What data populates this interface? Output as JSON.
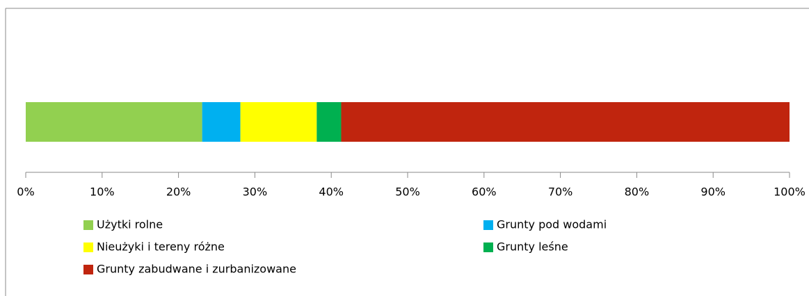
{
  "chart_data": {
    "type": "stacked-bar-horizontal",
    "series": [
      {
        "name": "Użytki rolne",
        "color": "#92d050",
        "values": [
          23.1
        ]
      },
      {
        "name": "Grunty pod wodami",
        "color": "#00b0f0",
        "values": [
          5.0
        ]
      },
      {
        "name": "Nieużyki i tereny różne",
        "color": "#ffff00",
        "values": [
          10.0
        ]
      },
      {
        "name": "Grunty leśne",
        "color": "#00b050",
        "values": [
          3.2
        ]
      },
      {
        "name": "Grunty zabudwane i zurbanizowane",
        "color": "#c0250e",
        "values": [
          58.7
        ]
      }
    ],
    "xlim": [
      0,
      100
    ],
    "xticks": [
      {
        "value": 0,
        "label": "0%"
      },
      {
        "value": 10,
        "label": "10%"
      },
      {
        "value": 20,
        "label": "20%"
      },
      {
        "value": 30,
        "label": "30%"
      },
      {
        "value": 40,
        "label": "40%"
      },
      {
        "value": 50,
        "label": "50%"
      },
      {
        "value": 60,
        "label": "60%"
      },
      {
        "value": 70,
        "label": "70%"
      },
      {
        "value": 80,
        "label": "80%"
      },
      {
        "value": 90,
        "label": "90%"
      },
      {
        "value": 100,
        "label": "100%"
      }
    ],
    "legend": "bottom"
  }
}
